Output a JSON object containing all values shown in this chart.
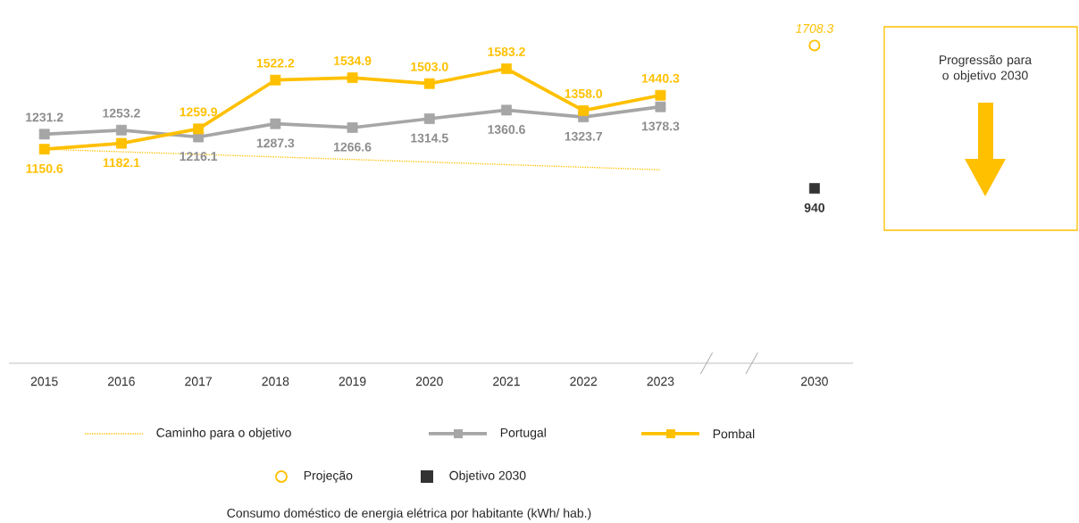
{
  "chart_data": {
    "type": "line",
    "categories": [
      "2015",
      "2016",
      "2017",
      "2018",
      "2019",
      "2020",
      "2021",
      "2022",
      "2023",
      null,
      "2030"
    ],
    "series": [
      {
        "name": "Caminho para o objetivo",
        "color": "#FFC000",
        "line_style": "dotted",
        "marker": "none",
        "values": [
          1150.6,
          null,
          null,
          null,
          null,
          null,
          null,
          null,
          1040,
          null,
          null
        ]
      },
      {
        "name": "Portugal",
        "color": "#A6A6A6",
        "marker": "square",
        "values": [
          1231.2,
          1253.2,
          1216.1,
          1287.3,
          1266.6,
          1314.5,
          1360.6,
          1323.7,
          1378.3,
          null,
          null
        ],
        "value_labels": [
          "1231.2",
          "1253.2",
          "1216.1",
          "1287.3",
          "1266.6",
          "1314.5",
          "1360.6",
          "1323.7",
          "1378.3",
          null,
          null
        ]
      },
      {
        "name": "Pombal",
        "color": "#FFC000",
        "marker": "square",
        "values": [
          1150.6,
          1182.1,
          1259.9,
          1522.2,
          1534.9,
          1503.0,
          1583.2,
          1358.0,
          1440.3,
          null,
          null
        ],
        "value_labels": [
          "1150.6",
          "1182.1",
          "1259.9",
          "1522.2",
          "1534.9",
          "1503.0",
          "1583.2",
          "1358.0",
          "1440.3",
          null,
          null
        ]
      },
      {
        "name": "Projeção",
        "type": "scatter",
        "color": "#FFC000",
        "marker": "circle",
        "values": [
          null,
          null,
          null,
          null,
          null,
          null,
          null,
          null,
          null,
          null,
          1708.3
        ],
        "value_labels": [
          null,
          null,
          null,
          null,
          null,
          null,
          null,
          null,
          null,
          null,
          "1708.3"
        ]
      },
      {
        "name": "Objetivo 2030",
        "type": "scatter",
        "color": "#333333",
        "marker": "square",
        "values": [
          null,
          null,
          null,
          null,
          null,
          null,
          null,
          null,
          null,
          null,
          940
        ],
        "value_labels": [
          null,
          null,
          null,
          null,
          null,
          null,
          null,
          null,
          null,
          null,
          "940"
        ]
      }
    ],
    "annotations": [
      "Progressão para o objetivo 2030",
      "Consumo doméstico de energia elétrica por habitante (kWh/ hab.)"
    ],
    "legend": "bottom",
    "grid": false,
    "tick_labels": "x"
  }
}
